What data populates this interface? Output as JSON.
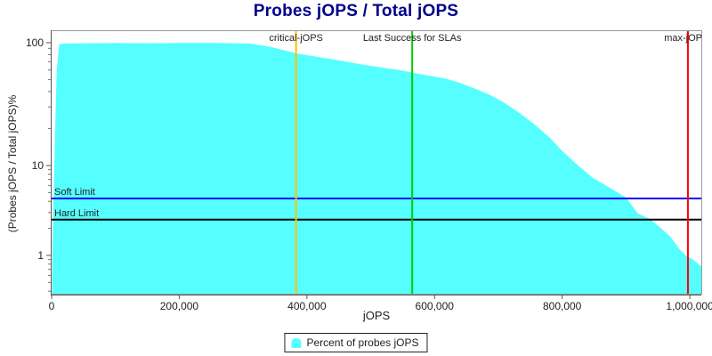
{
  "title": "Probes jOPS / Total jOPS",
  "axes": {
    "xlabel": "jOPS",
    "ylabel": "(Probes jOPS / Total jOPS)%"
  },
  "legend": {
    "label": "Percent of probes jOPS",
    "marker_color": "#55FFFF"
  },
  "colors": {
    "area": "#55FFFF",
    "critical_line": "#FFC000",
    "last_success_line": "#00CE00",
    "max_line": "#FF0000",
    "soft_limit_line": "#0000FF",
    "hard_limit_line": "#000000",
    "frame": "#888888",
    "title_text": "#00008B"
  },
  "chart_data": {
    "type": "area",
    "title": "Probes jOPS / Total jOPS",
    "xlabel": "jOPS",
    "ylabel": "(Probes jOPS / Total jOPS)%",
    "x_axis": {
      "min": 0,
      "max": 1018000,
      "ticks": [
        {
          "value": 0,
          "label": "0"
        },
        {
          "value": 200000,
          "label": "200,000"
        },
        {
          "value": 400000,
          "label": "400,000"
        },
        {
          "value": 600000,
          "label": "600,000"
        },
        {
          "value": 800000,
          "label": "800,000"
        },
        {
          "value": 1000000,
          "label": "1,000,000"
        }
      ]
    },
    "y_axis": {
      "scale": "log",
      "ticks": [
        {
          "value": 100,
          "label": "100"
        },
        {
          "value": 10,
          "label": "10"
        },
        {
          "value": 1,
          "label": "1"
        }
      ],
      "minor_ticks": [
        90,
        80,
        70,
        60,
        50,
        40,
        30,
        20,
        9,
        8,
        7,
        6,
        5,
        4,
        3,
        2,
        0.9,
        0.8,
        0.7,
        0.6,
        0.5,
        0.4
      ]
    },
    "series": [
      {
        "name": "Percent of probes jOPS",
        "type": "area",
        "color": "#55FFFF",
        "points": [
          [
            1000,
            0.6
          ],
          [
            2500,
            3
          ],
          [
            5000,
            15
          ],
          [
            8000,
            60
          ],
          [
            12000,
            97
          ],
          [
            20000,
            98.5
          ],
          [
            50000,
            99
          ],
          [
            100000,
            99.5
          ],
          [
            150000,
            99
          ],
          [
            200000,
            99.5
          ],
          [
            260000,
            99.5
          ],
          [
            310000,
            98.5
          ],
          [
            340000,
            93
          ],
          [
            360000,
            88
          ],
          [
            383000,
            82
          ],
          [
            420000,
            76
          ],
          [
            453000,
            71.5
          ],
          [
            490000,
            66
          ],
          [
            520000,
            62.5
          ],
          [
            545000,
            60
          ],
          [
            566000,
            57
          ],
          [
            590000,
            54
          ],
          [
            618000,
            51
          ],
          [
            640000,
            47
          ],
          [
            660000,
            43
          ],
          [
            685000,
            38
          ],
          [
            707000,
            33
          ],
          [
            730000,
            27.5
          ],
          [
            755000,
            22
          ],
          [
            780000,
            17
          ],
          [
            801000,
            13
          ],
          [
            825000,
            10
          ],
          [
            848000,
            7.3
          ],
          [
            872000,
            5.8
          ],
          [
            900000,
            4.4
          ],
          [
            918000,
            2.95
          ],
          [
            939000,
            2.5
          ],
          [
            955000,
            2.0
          ],
          [
            970000,
            1.6
          ],
          [
            984000,
            1.17
          ],
          [
            995000,
            0.98
          ],
          [
            1005000,
            0.9
          ],
          [
            1012000,
            0.82
          ],
          [
            1018000,
            0.76
          ]
        ]
      }
    ],
    "vlines": [
      {
        "name": "critical-jops",
        "label": "critical-jOPS",
        "x": 383000,
        "color": "#FFC000",
        "label_anchor": "middle"
      },
      {
        "name": "last-success-for-slas",
        "label": "Last Success for SLAs",
        "x": 565000,
        "color": "#00CE00",
        "label_anchor": "middle"
      },
      {
        "name": "max-jops",
        "label": "max-jOP",
        "x": 997000,
        "color": "#FF0000",
        "label_anchor": "end"
      }
    ],
    "hlines": [
      {
        "name": "soft-limit",
        "label": "Soft Limit",
        "y": 4.3,
        "color": "#0000FF"
      },
      {
        "name": "hard-limit",
        "label": "Hard Limit",
        "y": 2.5,
        "color": "#000000"
      }
    ],
    "legend": {
      "position": "bottom",
      "entries": [
        {
          "label": "Percent of probes jOPS",
          "color": "#55FFFF"
        }
      ]
    }
  }
}
